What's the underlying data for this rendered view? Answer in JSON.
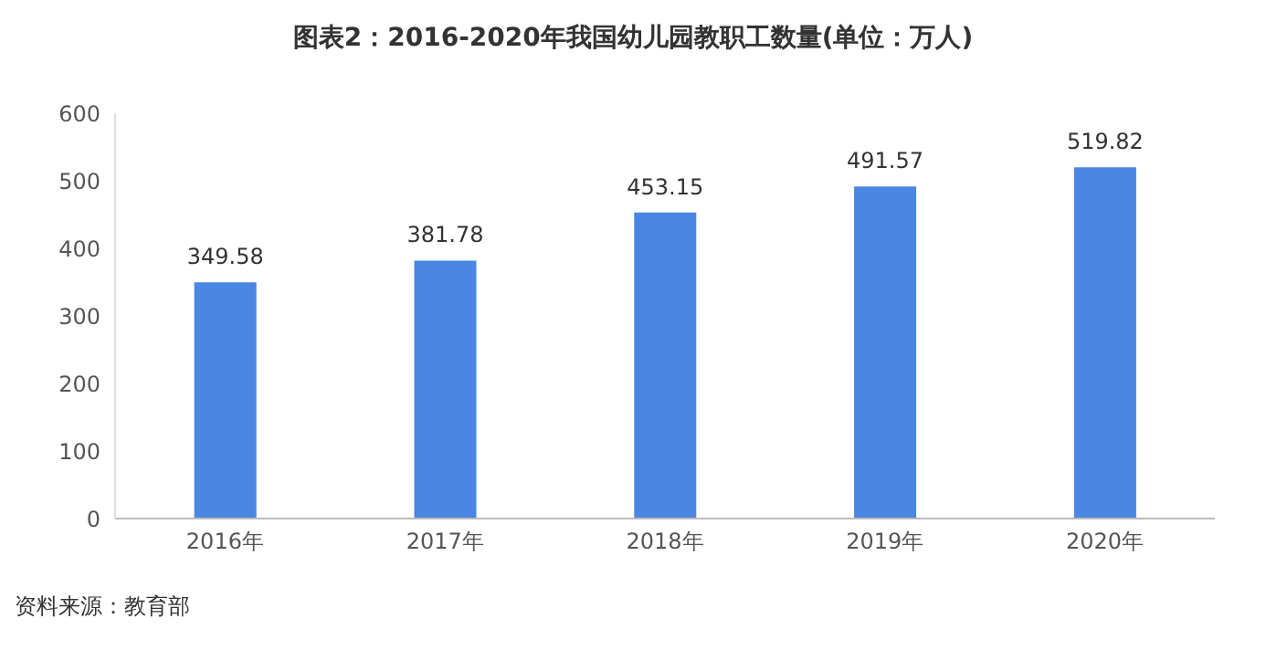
{
  "chart_data": {
    "type": "bar",
    "title": "图表2：2016-2020年我国幼儿园教职工数量(单位：万人)",
    "categories": [
      "2016年",
      "2017年",
      "2018年",
      "2019年",
      "2020年"
    ],
    "values": [
      349.58,
      381.78,
      453.15,
      491.57,
      519.82
    ],
    "color": "#4a86e4",
    "ylim": [
      0,
      600
    ],
    "yticks": [
      0,
      100,
      200,
      300,
      400,
      500,
      600
    ],
    "grid": false,
    "data_labels": true,
    "annotations": [
      "资料来源：教育部"
    ]
  }
}
